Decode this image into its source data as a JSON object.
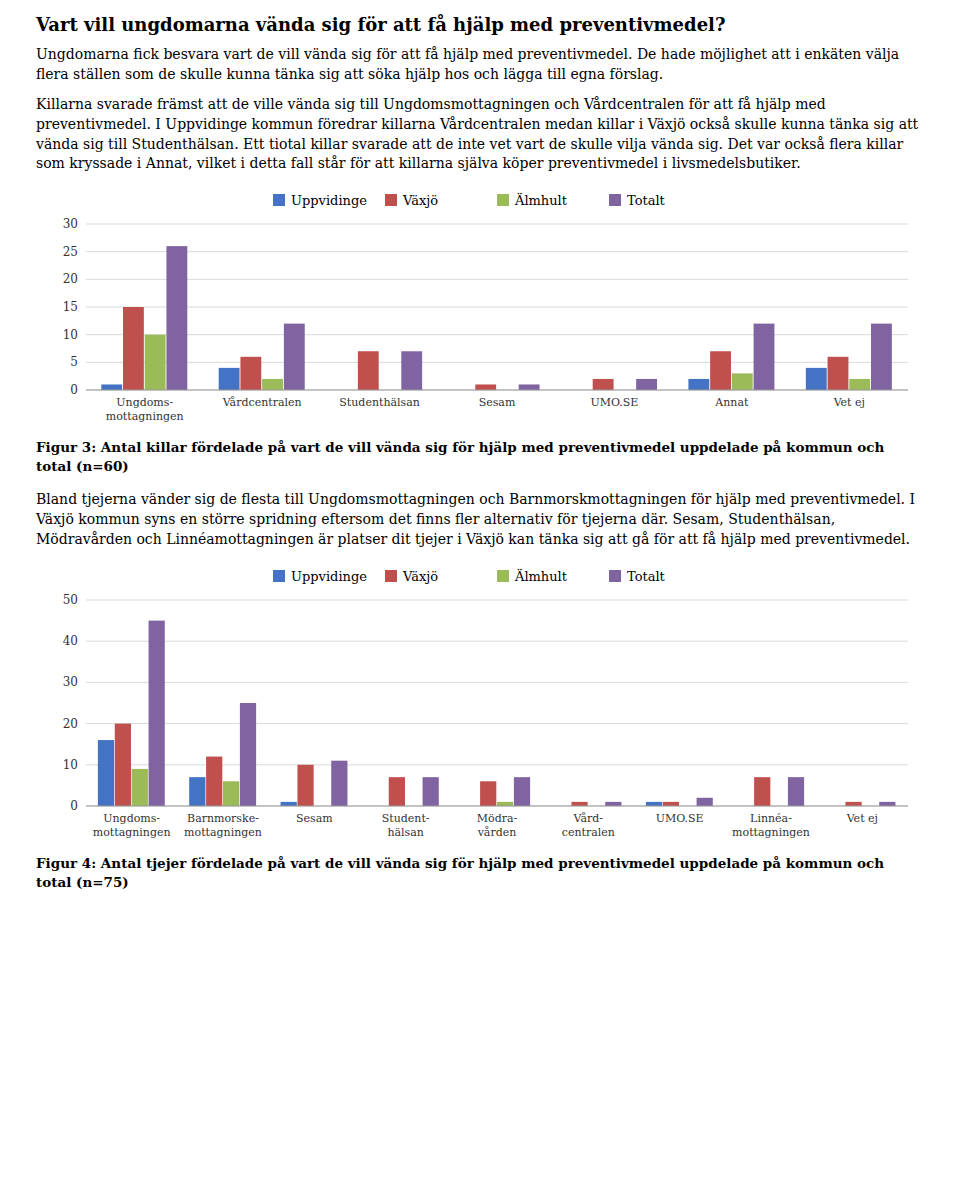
{
  "title": "Vart vill ungdomarna vända sig för att få hjälp med preventivmedel?",
  "intro_text": "Ungdomarna fick besvara vart de vill vända sig för att få hjälp med preventivmedel. De hade möjlighet att i enkäten välja flera ställen som de skulle kunna tänka sig att söka hjälp hos och lägga till egna förslag.",
  "body_text1": "Killarna svarade främst att de ville vända sig till Ungdomsmottagningen och Vårdcentralen för att få hjälp med preventivmedel. I Uppvidinge kommun föredrar killarna Vårdcentralen medan killar i Växjö också skulle kunna tänka sig att vända sig till Studenthälsan. Ett tiotal killar svarade att de inte vet vart de skulle vilja vända sig. Det var också flera killar som kryssade i Annat, vilket i detta fall står för att killarna själva köper preventivmedel i livsmedelsbutiker.",
  "body_text2": "Bland tjejerna vänder sig de flesta till Ungdomsmottagningen och Barnmorskmottagningen för hjälp med preventivmedel. I Växjö kommun syns en större spridning eftersom det finns fler alternativ för tjejerna där. Sesam, Studenthälsan, Mödravården och Linnéamottagningen är platser dit tjejer i Växjö kan tänka sig att gå för att få hjälp med preventivmedel.",
  "chart_data": [
    {
      "type": "bar",
      "title": "Figur 3: Antal killar fördelade på vart de vill vända sig för hjälp med preventivmedel uppdelade på kommun och total (n=60)",
      "categories": [
        "Ungdoms-\nmottagningen",
        "Vårdcentralen",
        "Studenthälsan",
        "Sesam",
        "UMO.SE",
        "Annat",
        "Vet ej"
      ],
      "series": [
        {
          "name": "Uppvidinge",
          "color": "#4472C4",
          "values": [
            1,
            4,
            0,
            0,
            0,
            2,
            4
          ]
        },
        {
          "name": "Växjö",
          "color": "#C0504D",
          "values": [
            15,
            6,
            7,
            1,
            2,
            7,
            6
          ]
        },
        {
          "name": "Älmhult",
          "color": "#9BBB59",
          "values": [
            10,
            2,
            0,
            0,
            0,
            3,
            2
          ]
        },
        {
          "name": "Totalt",
          "color": "#8064A2",
          "values": [
            26,
            12,
            7,
            1,
            2,
            12,
            12
          ]
        }
      ],
      "ylim": [
        0,
        30
      ],
      "yticks": [
        0,
        5,
        10,
        15,
        20,
        25,
        30
      ],
      "grid": true
    },
    {
      "type": "bar",
      "title": "Figur 4: Antal tjejer fördelade på vart de vill vända sig för hjälp med preventivmedel uppdelade på kommun och total (n=75)",
      "categories": [
        "Ungdoms-\nmottagningen",
        "Barnmorske-\nmottagningen",
        "Sesam",
        "Student-\nhälsan",
        "Mödra-\nvården",
        "Vård-\ncentralen",
        "UMO.SE",
        "Linnéa-\nmottagningen",
        "Vet ej"
      ],
      "series": [
        {
          "name": "Uppvidinge",
          "color": "#4472C4",
          "values": [
            16,
            7,
            1,
            0,
            0,
            0,
            1,
            0,
            0
          ]
        },
        {
          "name": "Växjö",
          "color": "#C0504D",
          "values": [
            20,
            12,
            10,
            7,
            6,
            1,
            1,
            7,
            1
          ]
        },
        {
          "name": "Älmhult",
          "color": "#9BBB59",
          "values": [
            9,
            6,
            0,
            0,
            1,
            0,
            0,
            0,
            0
          ]
        },
        {
          "name": "Totalt",
          "color": "#8064A2",
          "values": [
            45,
            25,
            11,
            7,
            7,
            1,
            2,
            7,
            1
          ]
        }
      ],
      "ylim": [
        0,
        50
      ],
      "yticks": [
        0,
        10,
        20,
        30,
        40,
        50
      ],
      "grid": true
    }
  ]
}
